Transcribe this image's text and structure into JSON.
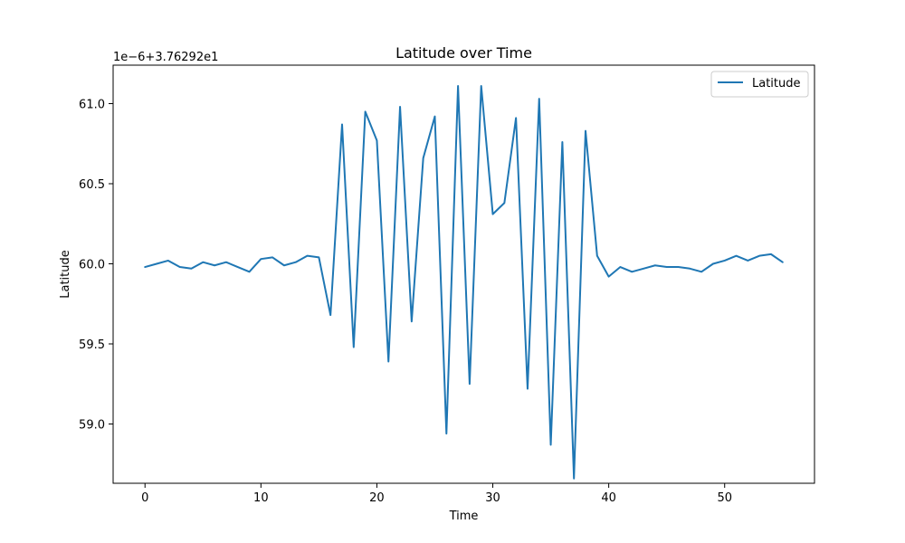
{
  "chart_data": {
    "type": "line",
    "title": "Latitude over Time",
    "xlabel": "Time",
    "ylabel": "Latitude",
    "offset_label": "1e−6+3.76292e1",
    "xlim": [
      -2.75,
      57.75
    ],
    "ylim": [
      58.63,
      61.24
    ],
    "xticks": [
      0,
      10,
      20,
      30,
      40,
      50
    ],
    "xtick_labels": [
      "0",
      "10",
      "20",
      "30",
      "40",
      "50"
    ],
    "yticks": [
      59.0,
      59.5,
      60.0,
      60.5,
      61.0
    ],
    "ytick_labels": [
      "59.0",
      "59.5",
      "60.0",
      "60.5",
      "61.0"
    ],
    "grid": false,
    "legend_position": "top-right",
    "series": [
      {
        "name": "Latitude",
        "color": "#1f77b4",
        "x": [
          0,
          1,
          2,
          3,
          4,
          5,
          6,
          7,
          8,
          9,
          10,
          11,
          12,
          13,
          14,
          15,
          16,
          17,
          18,
          19,
          20,
          21,
          22,
          23,
          24,
          25,
          26,
          27,
          28,
          29,
          30,
          31,
          32,
          33,
          34,
          35,
          36,
          37,
          38,
          39,
          40,
          41,
          42,
          43,
          44,
          45,
          46,
          47,
          48,
          49,
          50,
          51,
          52,
          53,
          54,
          55
        ],
        "y": [
          59.98,
          60.0,
          60.02,
          59.98,
          59.97,
          60.01,
          59.99,
          60.01,
          59.98,
          59.95,
          60.03,
          60.04,
          59.99,
          60.01,
          60.05,
          60.04,
          59.68,
          60.87,
          59.48,
          60.95,
          60.77,
          59.39,
          60.98,
          59.64,
          60.66,
          60.92,
          58.94,
          61.11,
          59.25,
          61.11,
          60.31,
          60.38,
          60.91,
          59.22,
          61.03,
          58.87,
          60.76,
          58.66,
          60.83,
          60.05,
          59.92,
          59.98,
          59.95,
          59.97,
          59.99,
          59.98,
          59.98,
          59.97,
          59.95,
          60.0,
          60.02,
          60.05,
          60.02,
          60.05,
          60.06,
          60.01
        ]
      }
    ]
  }
}
